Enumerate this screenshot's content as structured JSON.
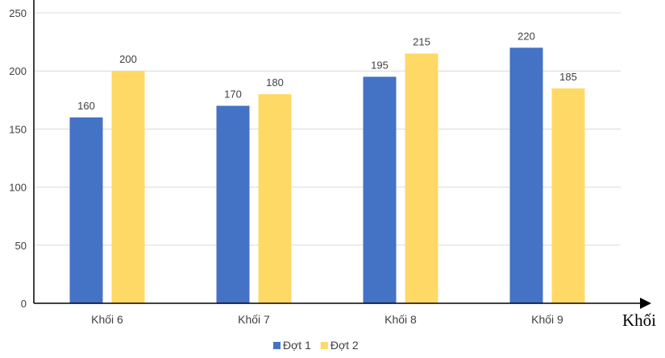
{
  "chart_data": {
    "type": "bar",
    "categories": [
      "Khối 6",
      "Khối 7",
      "Khối 8",
      "Khối 9"
    ],
    "series": [
      {
        "name": "Đợt 1",
        "values": [
          160,
          170,
          195,
          220
        ],
        "color": "#4472c4"
      },
      {
        "name": "Đợt 2",
        "values": [
          200,
          180,
          215,
          185
        ],
        "color": "#ffd966"
      }
    ],
    "xlabel": "Khối",
    "ylabel": "",
    "ylim": [
      0,
      250
    ],
    "yticks": [
      0,
      50,
      100,
      150,
      200,
      250
    ],
    "grid": true,
    "legend_position": "bottom"
  }
}
